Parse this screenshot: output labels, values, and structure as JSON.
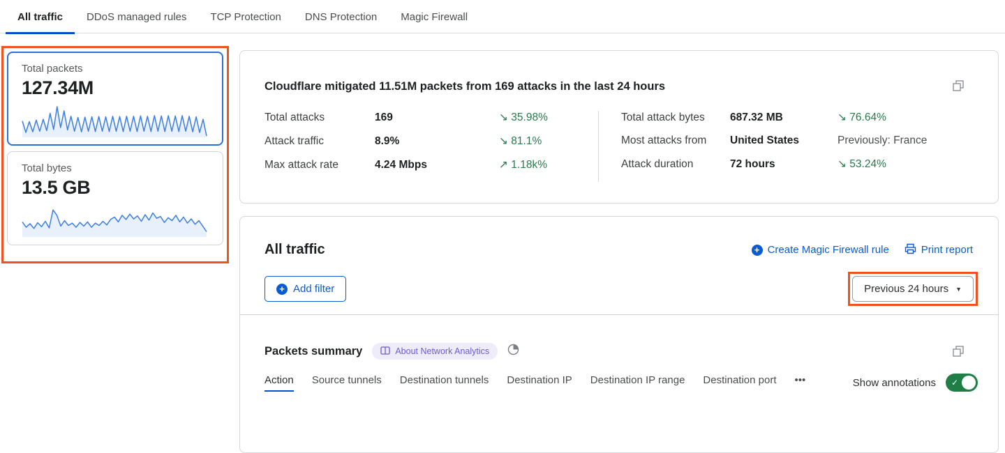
{
  "top_tabs": {
    "items": [
      {
        "label": "All traffic",
        "active": true
      },
      {
        "label": "DDoS managed rules",
        "active": false
      },
      {
        "label": "TCP Protection",
        "active": false
      },
      {
        "label": "DNS Protection",
        "active": false
      },
      {
        "label": "Magic Firewall",
        "active": false
      }
    ]
  },
  "sidebar": {
    "cards": [
      {
        "title": "Total packets",
        "value": "127.34M",
        "selected": true,
        "sparkline": [
          52,
          14,
          50,
          16,
          55,
          18,
          58,
          20,
          78,
          24,
          100,
          30,
          86,
          22,
          68,
          18,
          64,
          16,
          65,
          18,
          66,
          17,
          67,
          18,
          66,
          17,
          68,
          18,
          67,
          17,
          68,
          18,
          68,
          17,
          69,
          18,
          68,
          17,
          70,
          18,
          69,
          17,
          70,
          18,
          69,
          17,
          70,
          18,
          68,
          16,
          66,
          14,
          58,
          2
        ]
      },
      {
        "title": "Total bytes",
        "value": "13.5 GB",
        "selected": false,
        "sparkline": [
          48,
          30,
          42,
          26,
          45,
          32,
          50,
          28,
          88,
          70,
          34,
          52,
          36,
          44,
          30,
          46,
          34,
          48,
          30,
          44,
          36,
          50,
          38,
          56,
          64,
          48,
          70,
          56,
          74,
          58,
          68,
          50,
          72,
          54,
          78,
          60,
          66,
          46,
          62,
          52,
          70,
          48,
          64,
          44,
          58,
          40,
          52,
          34,
          15
        ]
      }
    ]
  },
  "summary": {
    "title": "Cloudflare mitigated 11.51M packets from 169 attacks in the last 24 hours",
    "stats_left": [
      {
        "label": "Total attacks",
        "value": "169",
        "delta": "↘ 35.98%"
      },
      {
        "label": "Attack traffic",
        "value": "8.9%",
        "delta": "↘ 81.1%"
      },
      {
        "label": "Max attack rate",
        "value": "4.24 Mbps",
        "delta": "↗ 1.18k%"
      }
    ],
    "stats_right": [
      {
        "label": "Total attack bytes",
        "value": "687.32 MB",
        "delta": "↘ 76.64%"
      },
      {
        "label": "Most attacks from",
        "value": "United States",
        "delta": "Previously: France"
      },
      {
        "label": "Attack duration",
        "value": "72 hours",
        "delta": "↘ 53.24%"
      }
    ]
  },
  "traffic_section": {
    "title": "All traffic",
    "create_rule_label": "Create Magic Firewall rule",
    "print_label": "Print report",
    "add_filter_label": "Add filter",
    "time_range_label": "Previous 24 hours",
    "plus_glyph": "+",
    "caret_glyph": "▼"
  },
  "packets_summary": {
    "title": "Packets summary",
    "badge_label": "About Network Analytics",
    "tabs": [
      {
        "label": "Action",
        "active": true
      },
      {
        "label": "Source tunnels",
        "active": false
      },
      {
        "label": "Destination tunnels",
        "active": false
      },
      {
        "label": "Destination IP",
        "active": false
      },
      {
        "label": "Destination IP range",
        "active": false
      },
      {
        "label": "Destination port",
        "active": false
      },
      {
        "label": "•••",
        "active": false
      }
    ],
    "show_annotations_label": "Show annotations",
    "toggle_on": true,
    "check_glyph": "✓"
  },
  "colors": {
    "accent_blue": "#0b5ad1",
    "tab_underline_blue": "#0051c3",
    "delta_green": "#26794b",
    "toggle_green": "#1e7e45",
    "highlight_orange": "#f0521f",
    "sparkline_blue": "#3c7ee2",
    "badge_purple": "#6d5bd0"
  }
}
